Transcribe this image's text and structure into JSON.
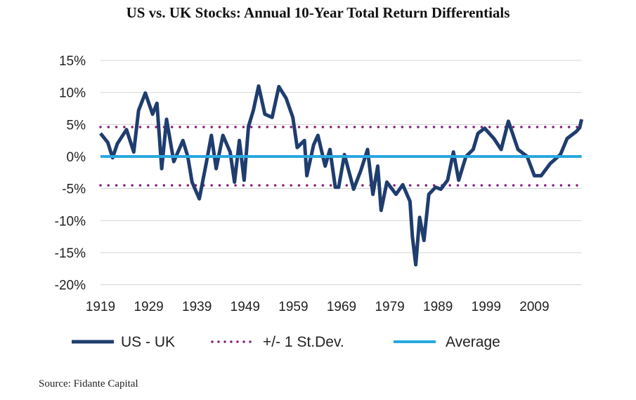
{
  "chart_data": {
    "type": "line",
    "title": "US vs. UK Stocks: Annual 10-Year Total Return Differentials",
    "xlabel": "",
    "ylabel": "",
    "xlim": [
      1919,
      2018.8
    ],
    "ylim": [
      -20,
      15
    ],
    "x_ticks": [
      1919,
      1929,
      1939,
      1949,
      1959,
      1969,
      1979,
      1989,
      1999,
      2009
    ],
    "y_ticks": [
      -20,
      -15,
      -10,
      -5,
      0,
      5,
      10,
      15
    ],
    "y_tick_format": "percent",
    "grid": "horizontal",
    "legend": "bottom",
    "series": [
      {
        "name": "US - UK",
        "color": "#1f3d6e",
        "style": "solid",
        "x": [
          1919,
          1920.5,
          1921.5,
          1922.5,
          1924.4,
          1925.9,
          1926.9,
          1928.3,
          1929.8,
          1930.7,
          1931.7,
          1932.7,
          1934.2,
          1936.1,
          1937.1,
          1938,
          1939.5,
          1941,
          1942,
          1943,
          1944.4,
          1945.9,
          1946.8,
          1947.8,
          1948.8,
          1949.7,
          1950.7,
          1951.8,
          1953.1,
          1954.6,
          1956,
          1957.5,
          1958.9,
          1959.8,
          1961.3,
          1961.8,
          1963.2,
          1964.1,
          1965.6,
          1966.6,
          1967.7,
          1968.4,
          1969.6,
          1971.5,
          1973,
          1974.4,
          1975.5,
          1976.5,
          1977.2,
          1978.4,
          1980.3,
          1981.7,
          1983.2,
          1983.7,
          1984.4,
          1985.2,
          1986.1,
          1987.1,
          1988.5,
          1989.6,
          1991,
          1992.2,
          1993.3,
          1994.8,
          1996.3,
          1997.3,
          1998.7,
          2000.6,
          2002.1,
          2003.6,
          2005.6,
          2007.5,
          2009,
          2010.4,
          2012.3,
          2014.4,
          2015.8,
          2017.7,
          2018.4,
          2018.8
        ],
        "y": [
          3.6,
          2.2,
          -0.2,
          2.0,
          4.2,
          0.7,
          7.2,
          9.9,
          6.6,
          8.3,
          -1.9,
          5.8,
          -0.8,
          2.5,
          0.0,
          -4.0,
          -6.6,
          -0.8,
          3.3,
          -1.9,
          3.3,
          0.7,
          -4.0,
          2.5,
          -3.7,
          4.7,
          7.2,
          11.0,
          6.6,
          6.1,
          10.9,
          9.1,
          6.1,
          1.4,
          2.5,
          -3.0,
          1.8,
          3.3,
          -1.5,
          1.1,
          -4.8,
          -4.8,
          0.3,
          -5.1,
          -2.2,
          1.1,
          -5.9,
          -1.5,
          -8.4,
          -4.0,
          -5.9,
          -4.4,
          -7.0,
          -12.5,
          -16.9,
          -9.5,
          -13.1,
          -5.9,
          -4.8,
          -5.1,
          -3.7,
          0.7,
          -3.7,
          0.0,
          1.1,
          3.6,
          4.4,
          2.8,
          1.1,
          5.5,
          1.1,
          0.0,
          -3.0,
          -3.0,
          -1.1,
          0.3,
          2.8,
          3.9,
          4.5,
          5.8
        ]
      },
      {
        "name": "+/- 1 St.Dev.",
        "color": "#8b1a7a",
        "style": "dotted",
        "values": [
          4.6,
          -4.5
        ]
      },
      {
        "name": "Average",
        "color": "#29a8e0",
        "style": "solid",
        "value": 0.0
      }
    ]
  },
  "source": "Source: Fidante Capital"
}
